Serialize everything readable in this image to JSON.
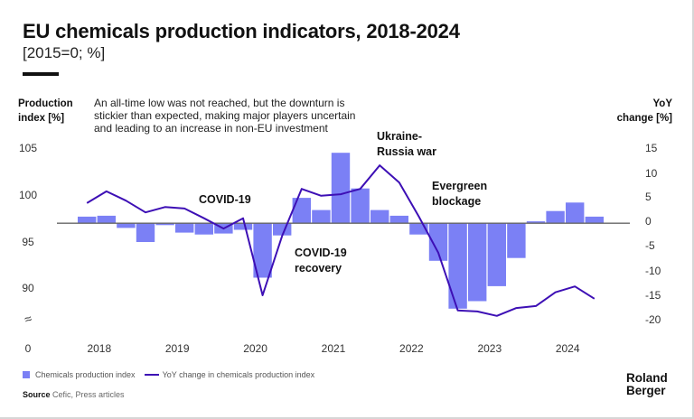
{
  "header": {
    "title": "EU chemicals production indicators, 2018-2024",
    "subtitle": "[2015=0; %]"
  },
  "axes": {
    "left_title_line1": "Production",
    "left_title_line2": "index [%]",
    "right_title_line1": "YoY",
    "right_title_line2": "change [%]",
    "left_ticks": [
      "105",
      "100",
      "95",
      "90",
      "0"
    ],
    "left_break_symbol": "≈",
    "right_ticks": [
      "15",
      "10",
      "5",
      "0",
      "-5",
      "-10",
      "-15",
      "-20"
    ]
  },
  "note": "An all-time low was not reached, but the downturn is stickier than expected, making major players uncertain and leading to an increase in non-EU investment",
  "annotations": {
    "covid": "COVID-19",
    "covid_recovery_line1": "COVID-19",
    "covid_recovery_line2": "recovery",
    "ukraine_line1": "Ukraine-",
    "ukraine_line2": "Russia war",
    "evergreen_line1": "Evergreen",
    "evergreen_line2": "blockage"
  },
  "legend": {
    "bars_label": "Chemicals production index",
    "line_label": "YoY change in chemicals production index"
  },
  "source": {
    "label": "Source",
    "text": "Cefic, Press articles"
  },
  "logo": {
    "line1": "Roland",
    "line2": "Berger"
  },
  "colors": {
    "bars": "#7b80f5",
    "line": "#3d0fb5",
    "baseline": "#666666"
  },
  "chart_data": {
    "type": "bar",
    "title": "EU chemicals production indicators, 2018-2024",
    "subtitle": "[2015=0; %]",
    "xlabel": "",
    "ylabel": "Production index [%]",
    "y2label": "YoY change [%]",
    "categories": [
      "2018",
      "2019",
      "2020",
      "2021",
      "2022",
      "2023",
      "2024"
    ],
    "x_period": "quarterly",
    "bar_baseline": 97,
    "ylim": [
      87,
      106
    ],
    "y2lim": [
      -21,
      17
    ],
    "grid": false,
    "legend_position": "bottom-left",
    "series": [
      {
        "name": "Chemicals production index",
        "type": "bar",
        "axis": "left",
        "values": [
          97.7,
          97.8,
          96.5,
          95.0,
          96.8,
          96.0,
          95.8,
          95.9,
          96.3,
          91.2,
          95.7,
          99.7,
          98.4,
          104.5,
          100.7,
          98.4,
          97.8,
          95.8,
          93.0,
          87.9,
          88.7,
          90.3,
          93.3,
          97.2,
          98.3,
          99.2,
          97.7
        ]
      },
      {
        "name": "YoY change in chemicals production index",
        "type": "line",
        "axis": "right",
        "values": [
          3.7,
          6.1,
          4.2,
          1.8,
          2.9,
          2.6,
          0.6,
          -1.5,
          0.6,
          -15.1,
          -3.0,
          6.6,
          5.2,
          5.5,
          6.6,
          11.4,
          7.9,
          1.0,
          -6.4,
          -18.2,
          -18.4,
          -19.3,
          -17.7,
          -17.3,
          -14.5,
          -13.3,
          -15.8
        ]
      }
    ],
    "annotations": [
      "COVID-19",
      "COVID-19 recovery",
      "Ukraine-Russia war",
      "Evergreen blockage"
    ]
  }
}
